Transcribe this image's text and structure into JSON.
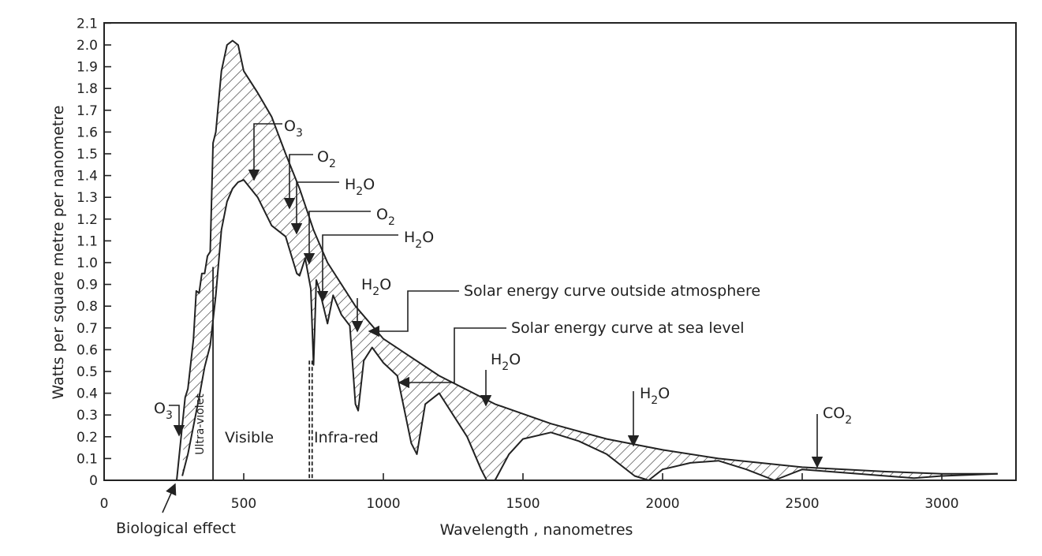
{
  "chart_data": {
    "type": "line",
    "xlabel": "Wavelength , nanometres",
    "ylabel": "Watts per square metre per nanometre",
    "xlim": [
      0,
      3300
    ],
    "ylim": [
      0,
      2.1
    ],
    "x_ticks": [
      "0",
      "500",
      "1000",
      "1500",
      "2000",
      "2500",
      "3000"
    ],
    "y_ticks": [
      "0",
      "0.1",
      "0.2",
      "0.3",
      "0.4",
      "0.5",
      "0.6",
      "0.7",
      "0.8",
      "0.9",
      "1.0",
      "1.1",
      "1.2",
      "1.3",
      "1.4",
      "1.5",
      "1.6",
      "1.7",
      "1.8",
      "1.9",
      "2.0",
      "2.1"
    ],
    "grid": false,
    "legend": "none",
    "shaded_area": "hatched region between curves = atmospheric absorption",
    "series": [
      {
        "name": "Solar energy curve outside atmosphere",
        "x": [
          260,
          290,
          300,
          320,
          330,
          340,
          350,
          360,
          370,
          380,
          390,
          400,
          420,
          440,
          460,
          480,
          500,
          550,
          600,
          650,
          700,
          750,
          800,
          900,
          1000,
          1200,
          1400,
          1600,
          1800,
          2000,
          2200,
          2500,
          2800,
          3000,
          3200
        ],
        "y": [
          0.0,
          0.38,
          0.42,
          0.65,
          0.87,
          0.86,
          0.95,
          0.95,
          1.03,
          1.05,
          1.55,
          1.6,
          1.88,
          2.0,
          2.02,
          2.0,
          1.88,
          1.78,
          1.67,
          1.5,
          1.34,
          1.15,
          1.0,
          0.8,
          0.65,
          0.48,
          0.35,
          0.26,
          0.19,
          0.14,
          0.1,
          0.06,
          0.04,
          0.03,
          0.03
        ]
      },
      {
        "name": "Solar energy curve at sea level",
        "x": [
          280,
          300,
          320,
          340,
          360,
          380,
          400,
          420,
          440,
          460,
          480,
          500,
          550,
          600,
          650,
          690,
          700,
          720,
          740,
          750,
          760,
          770,
          800,
          820,
          850,
          880,
          900,
          910,
          930,
          960,
          1000,
          1050,
          1100,
          1120,
          1150,
          1200,
          1300,
          1350,
          1370,
          1400,
          1450,
          1500,
          1600,
          1700,
          1800,
          1900,
          1950,
          2000,
          2100,
          2200,
          2300,
          2400,
          2500,
          2600,
          2700,
          2800,
          2900,
          3000,
          3200
        ],
        "y": [
          0.02,
          0.12,
          0.25,
          0.38,
          0.52,
          0.62,
          0.85,
          1.15,
          1.28,
          1.34,
          1.37,
          1.38,
          1.3,
          1.17,
          1.12,
          0.95,
          0.94,
          1.02,
          0.88,
          0.53,
          0.92,
          0.88,
          0.72,
          0.85,
          0.76,
          0.71,
          0.35,
          0.32,
          0.55,
          0.61,
          0.54,
          0.48,
          0.17,
          0.12,
          0.35,
          0.4,
          0.2,
          0.05,
          0.0,
          0.0,
          0.12,
          0.19,
          0.22,
          0.18,
          0.12,
          0.02,
          0.0,
          0.05,
          0.08,
          0.09,
          0.05,
          0.0,
          0.05,
          0.04,
          0.03,
          0.02,
          0.01,
          0.02,
          0.03
        ]
      }
    ],
    "annotations": [
      {
        "text": "O",
        "sub": "3",
        "x": 550,
        "y": 1.38
      },
      {
        "text": "O",
        "sub": "2",
        "x": 690,
        "y": 1.27
      },
      {
        "text": "H",
        "sub": "2",
        "tail": "O",
        "x": 720,
        "y": 1.15
      },
      {
        "text": "O",
        "sub": "2",
        "x": 760,
        "y": 1.0
      },
      {
        "text": "H",
        "sub": "2",
        "tail": "O",
        "x": 810,
        "y": 0.78
      },
      {
        "text": "H",
        "sub": "2",
        "tail": "O",
        "x": 940,
        "y": 0.68
      },
      {
        "text": "H",
        "sub": "2",
        "tail": "O",
        "x": 1390,
        "y": 0.34
      },
      {
        "text": "H",
        "sub": "2",
        "tail": "O",
        "x": 1900,
        "y": 0.16
      },
      {
        "text": "CO",
        "sub": "2",
        "x": 2600,
        "y": 0.08
      },
      {
        "text": "O",
        "sub": "3",
        "x": 290,
        "y": 0.22
      }
    ],
    "labels": {
      "outside": "Solar energy curve outside atmosphere",
      "sea_level": "Solar energy curve at sea level",
      "visible": "Visible",
      "infrared": "Infra-red",
      "ultraviolet": "Ultra-violet",
      "biological": "Biological effect"
    }
  }
}
